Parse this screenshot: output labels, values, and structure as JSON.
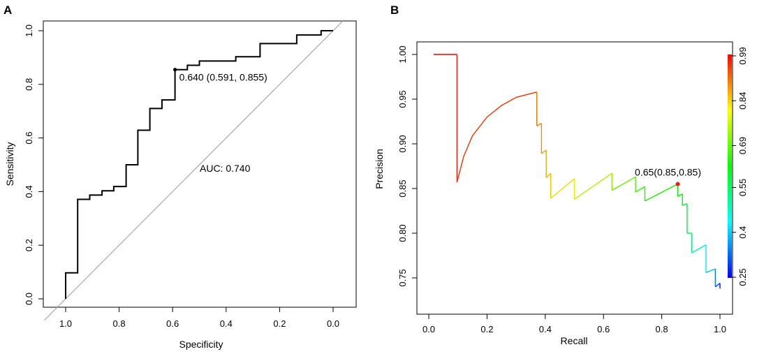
{
  "chart_data": [
    {
      "panel": "A",
      "type": "line",
      "subtype": "roc",
      "xlabel": "Specificity",
      "ylabel": "Sensitivity",
      "xlim": [
        1.0,
        0.0
      ],
      "ylim": [
        0.0,
        1.0
      ],
      "x_reversed": true,
      "x_ticks": [
        1.0,
        0.8,
        0.6,
        0.4,
        0.2,
        0.0
      ],
      "x_tick_labels": [
        "1.0",
        "0.8",
        "0.6",
        "0.4",
        "0.2",
        "0.0"
      ],
      "y_ticks": [
        0.0,
        0.2,
        0.4,
        0.6,
        0.8,
        1.0
      ],
      "y_tick_labels": [
        "0.0",
        "0.2",
        "0.4",
        "0.6",
        "0.8",
        "1.0"
      ],
      "series": [
        {
          "name": "ROC",
          "color": "#000000",
          "specificity": [
            1.0,
            1.0,
            0.955,
            0.955,
            0.91,
            0.91,
            0.864,
            0.864,
            0.82,
            0.82,
            0.774,
            0.774,
            0.73,
            0.73,
            0.685,
            0.685,
            0.64,
            0.64,
            0.591,
            0.591,
            0.545,
            0.545,
            0.5,
            0.5,
            0.364,
            0.364,
            0.273,
            0.273,
            0.136,
            0.136,
            0.045,
            0.045,
            0.0
          ],
          "sensitivity": [
            0.0,
            0.097,
            0.097,
            0.371,
            0.371,
            0.387,
            0.387,
            0.403,
            0.403,
            0.419,
            0.419,
            0.5,
            0.5,
            0.629,
            0.629,
            0.71,
            0.71,
            0.742,
            0.742,
            0.855,
            0.855,
            0.871,
            0.871,
            0.887,
            0.887,
            0.903,
            0.903,
            0.952,
            0.952,
            0.984,
            0.984,
            1.0,
            1.0
          ]
        }
      ],
      "reference_line": {
        "from": [
          1.0,
          0.0
        ],
        "to": [
          0.0,
          1.0
        ],
        "color": "#999999"
      },
      "threshold_point": {
        "specificity": 0.591,
        "sensitivity": 0.855,
        "label": "0.640 (0.591, 0.855)"
      },
      "auc_label": "AUC: 0.740"
    },
    {
      "panel": "B",
      "type": "line",
      "subtype": "precision-recall",
      "xlabel": "Recall",
      "ylabel": "Precision",
      "xlim": [
        0.0,
        1.0
      ],
      "ylim": [
        0.73,
        1.0
      ],
      "x_ticks": [
        0.0,
        0.2,
        0.4,
        0.6,
        0.8,
        1.0
      ],
      "x_tick_labels": [
        "0.0",
        "0.2",
        "0.4",
        "0.6",
        "0.8",
        "1.0"
      ],
      "y_ticks": [
        0.75,
        0.8,
        0.85,
        0.9,
        0.95,
        1.0
      ],
      "y_tick_labels": [
        "0.75",
        "0.80",
        "0.85",
        "0.90",
        "0.95",
        "1.00"
      ],
      "series": [
        {
          "name": "PR curve",
          "color_by": "threshold",
          "segments": [
            {
              "recall": [
                0.016,
                0.097
              ],
              "precision": [
                1.0,
                1.0
              ],
              "threshold": 0.99
            },
            {
              "recall": [
                0.097,
                0.097
              ],
              "precision": [
                1.0,
                0.857
              ],
              "threshold": 0.97
            },
            {
              "recall": [
                0.097,
                0.12,
                0.15,
                0.2,
                0.25,
                0.3,
                0.371
              ],
              "precision": [
                0.857,
                0.886,
                0.909,
                0.93,
                0.943,
                0.952,
                0.958
              ],
              "threshold": 0.95
            },
            {
              "recall": [
                0.371,
                0.371
              ],
              "precision": [
                0.958,
                0.92
              ],
              "threshold": 0.9
            },
            {
              "recall": [
                0.371,
                0.387
              ],
              "precision": [
                0.92,
                0.923
              ],
              "threshold": 0.89
            },
            {
              "recall": [
                0.387,
                0.387
              ],
              "precision": [
                0.923,
                0.889
              ],
              "threshold": 0.88
            },
            {
              "recall": [
                0.387,
                0.403
              ],
              "precision": [
                0.889,
                0.893
              ],
              "threshold": 0.87
            },
            {
              "recall": [
                0.403,
                0.403
              ],
              "precision": [
                0.893,
                0.862
              ],
              "threshold": 0.86
            },
            {
              "recall": [
                0.403,
                0.419
              ],
              "precision": [
                0.862,
                0.867
              ],
              "threshold": 0.85
            },
            {
              "recall": [
                0.419,
                0.419
              ],
              "precision": [
                0.867,
                0.839
              ],
              "threshold": 0.84
            },
            {
              "recall": [
                0.419,
                0.5
              ],
              "precision": [
                0.839,
                0.861
              ],
              "threshold": 0.82
            },
            {
              "recall": [
                0.5,
                0.5
              ],
              "precision": [
                0.861,
                0.838
              ],
              "threshold": 0.8
            },
            {
              "recall": [
                0.5,
                0.629
              ],
              "precision": [
                0.838,
                0.867
              ],
              "threshold": 0.76
            },
            {
              "recall": [
                0.629,
                0.629
              ],
              "precision": [
                0.867,
                0.848
              ],
              "threshold": 0.73
            },
            {
              "recall": [
                0.629,
                0.71
              ],
              "precision": [
                0.848,
                0.863
              ],
              "threshold": 0.7
            },
            {
              "recall": [
                0.71,
                0.71
              ],
              "precision": [
                0.863,
                0.846
              ],
              "threshold": 0.68
            },
            {
              "recall": [
                0.71,
                0.742
              ],
              "precision": [
                0.846,
                0.852
              ],
              "threshold": 0.66
            },
            {
              "recall": [
                0.742,
                0.742
              ],
              "precision": [
                0.852,
                0.836
              ],
              "threshold": 0.655
            },
            {
              "recall": [
                0.742,
                0.855
              ],
              "precision": [
                0.836,
                0.855
              ],
              "threshold": 0.645
            },
            {
              "recall": [
                0.855,
                0.855
              ],
              "precision": [
                0.855,
                0.841
              ],
              "threshold": 0.63
            },
            {
              "recall": [
                0.855,
                0.871
              ],
              "precision": [
                0.841,
                0.844
              ],
              "threshold": 0.61
            },
            {
              "recall": [
                0.871,
                0.871
              ],
              "precision": [
                0.844,
                0.831
              ],
              "threshold": 0.6
            },
            {
              "recall": [
                0.871,
                0.887
              ],
              "precision": [
                0.831,
                0.833
              ],
              "threshold": 0.58
            },
            {
              "recall": [
                0.887,
                0.887
              ],
              "precision": [
                0.833,
                0.8
              ],
              "threshold": 0.57
            },
            {
              "recall": [
                0.887,
                0.903
              ],
              "precision": [
                0.8,
                0.8
              ],
              "threshold": 0.55
            },
            {
              "recall": [
                0.903,
                0.903
              ],
              "precision": [
                0.8,
                0.778
              ],
              "threshold": 0.53
            },
            {
              "recall": [
                0.903,
                0.952
              ],
              "precision": [
                0.778,
                0.787
              ],
              "threshold": 0.48
            },
            {
              "recall": [
                0.952,
                0.952
              ],
              "precision": [
                0.787,
                0.756
              ],
              "threshold": 0.44
            },
            {
              "recall": [
                0.952,
                0.984
              ],
              "precision": [
                0.756,
                0.76
              ],
              "threshold": 0.4
            },
            {
              "recall": [
                0.984,
                0.984
              ],
              "precision": [
                0.76,
                0.74
              ],
              "threshold": 0.35
            },
            {
              "recall": [
                0.984,
                1.0
              ],
              "precision": [
                0.74,
                0.744
              ],
              "threshold": 0.3
            },
            {
              "recall": [
                1.0,
                1.0
              ],
              "precision": [
                0.744,
                0.738
              ],
              "threshold": 0.26
            }
          ]
        }
      ],
      "threshold_point": {
        "recall": 0.855,
        "precision": 0.855,
        "label": "0.65(0.85,0.85)",
        "color": "#e41a1c"
      },
      "colorbar": {
        "range": [
          0.25,
          0.99
        ],
        "tick_values": [
          0.25,
          0.4,
          0.55,
          0.69,
          0.84,
          0.99
        ],
        "tick_labels": [
          "0.25",
          "0.4",
          "0.55",
          "0.69",
          "0.84",
          "0.99"
        ]
      }
    }
  ],
  "panel_labels": [
    "A",
    "B"
  ]
}
